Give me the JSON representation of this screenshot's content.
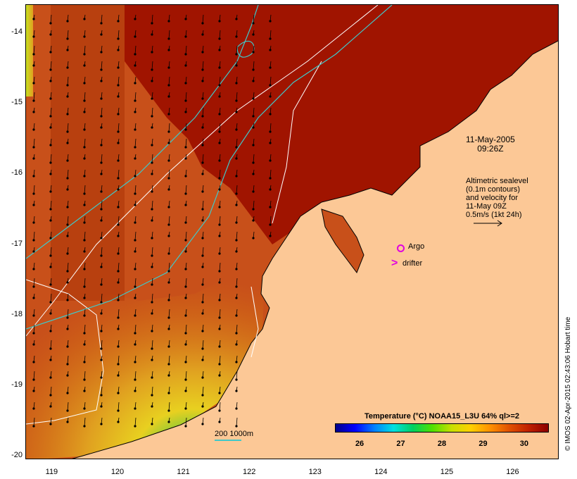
{
  "map": {
    "y_ticks": [
      {
        "label": "-14",
        "value": -14
      },
      {
        "label": "-15",
        "value": -15
      },
      {
        "label": "-16",
        "value": -16
      },
      {
        "label": "-17",
        "value": -17
      },
      {
        "label": "-18",
        "value": -18
      },
      {
        "label": "-19",
        "value": -19
      },
      {
        "label": "-20",
        "value": -20
      }
    ],
    "x_ticks": [
      {
        "label": "119",
        "value": 119
      },
      {
        "label": "120",
        "value": 120
      },
      {
        "label": "121",
        "value": 121
      },
      {
        "label": "122",
        "value": 122
      },
      {
        "label": "123",
        "value": 123
      },
      {
        "label": "124",
        "value": 124
      },
      {
        "label": "125",
        "value": 125
      },
      {
        "label": "126",
        "value": 126
      }
    ],
    "lon_range": [
      118.6,
      126.7
    ],
    "lat_range": [
      -20.05,
      -13.6
    ],
    "colors": {
      "land": "#fcc896",
      "ocean_warm": "#a01400",
      "ocean_mid": "#d46a10",
      "coast_yellow": "#e8c020",
      "coast_green": "#60c840",
      "contour_white": "#ffffff",
      "isobath_cyan": "#40c8c8",
      "marker_magenta": "#e000e0"
    }
  },
  "annotations": {
    "date": "11-May-2005",
    "time": "09:26Z",
    "altimetry_lines": [
      "Altimetric sealevel",
      "(0.1m contours)",
      "and velocity for",
      "11-May 09Z",
      "0.5m/s (1kt 24h)"
    ],
    "argo_label": "Argo",
    "drifter_label": "drifter",
    "isobath_label": "200  1000m"
  },
  "legend": {
    "title": "Temperature (°C) NOAA15_L3U 64% ql>=2",
    "ticks": [
      {
        "label": "26",
        "value": 26
      },
      {
        "label": "27",
        "value": 27
      },
      {
        "label": "28",
        "value": 28
      },
      {
        "label": "29",
        "value": 29
      },
      {
        "label": "30",
        "value": 30
      }
    ],
    "range": [
      25.4,
      30.6
    ]
  },
  "credit": "© IMOS 02-Apr-2015 02:43:06 Hobart time"
}
